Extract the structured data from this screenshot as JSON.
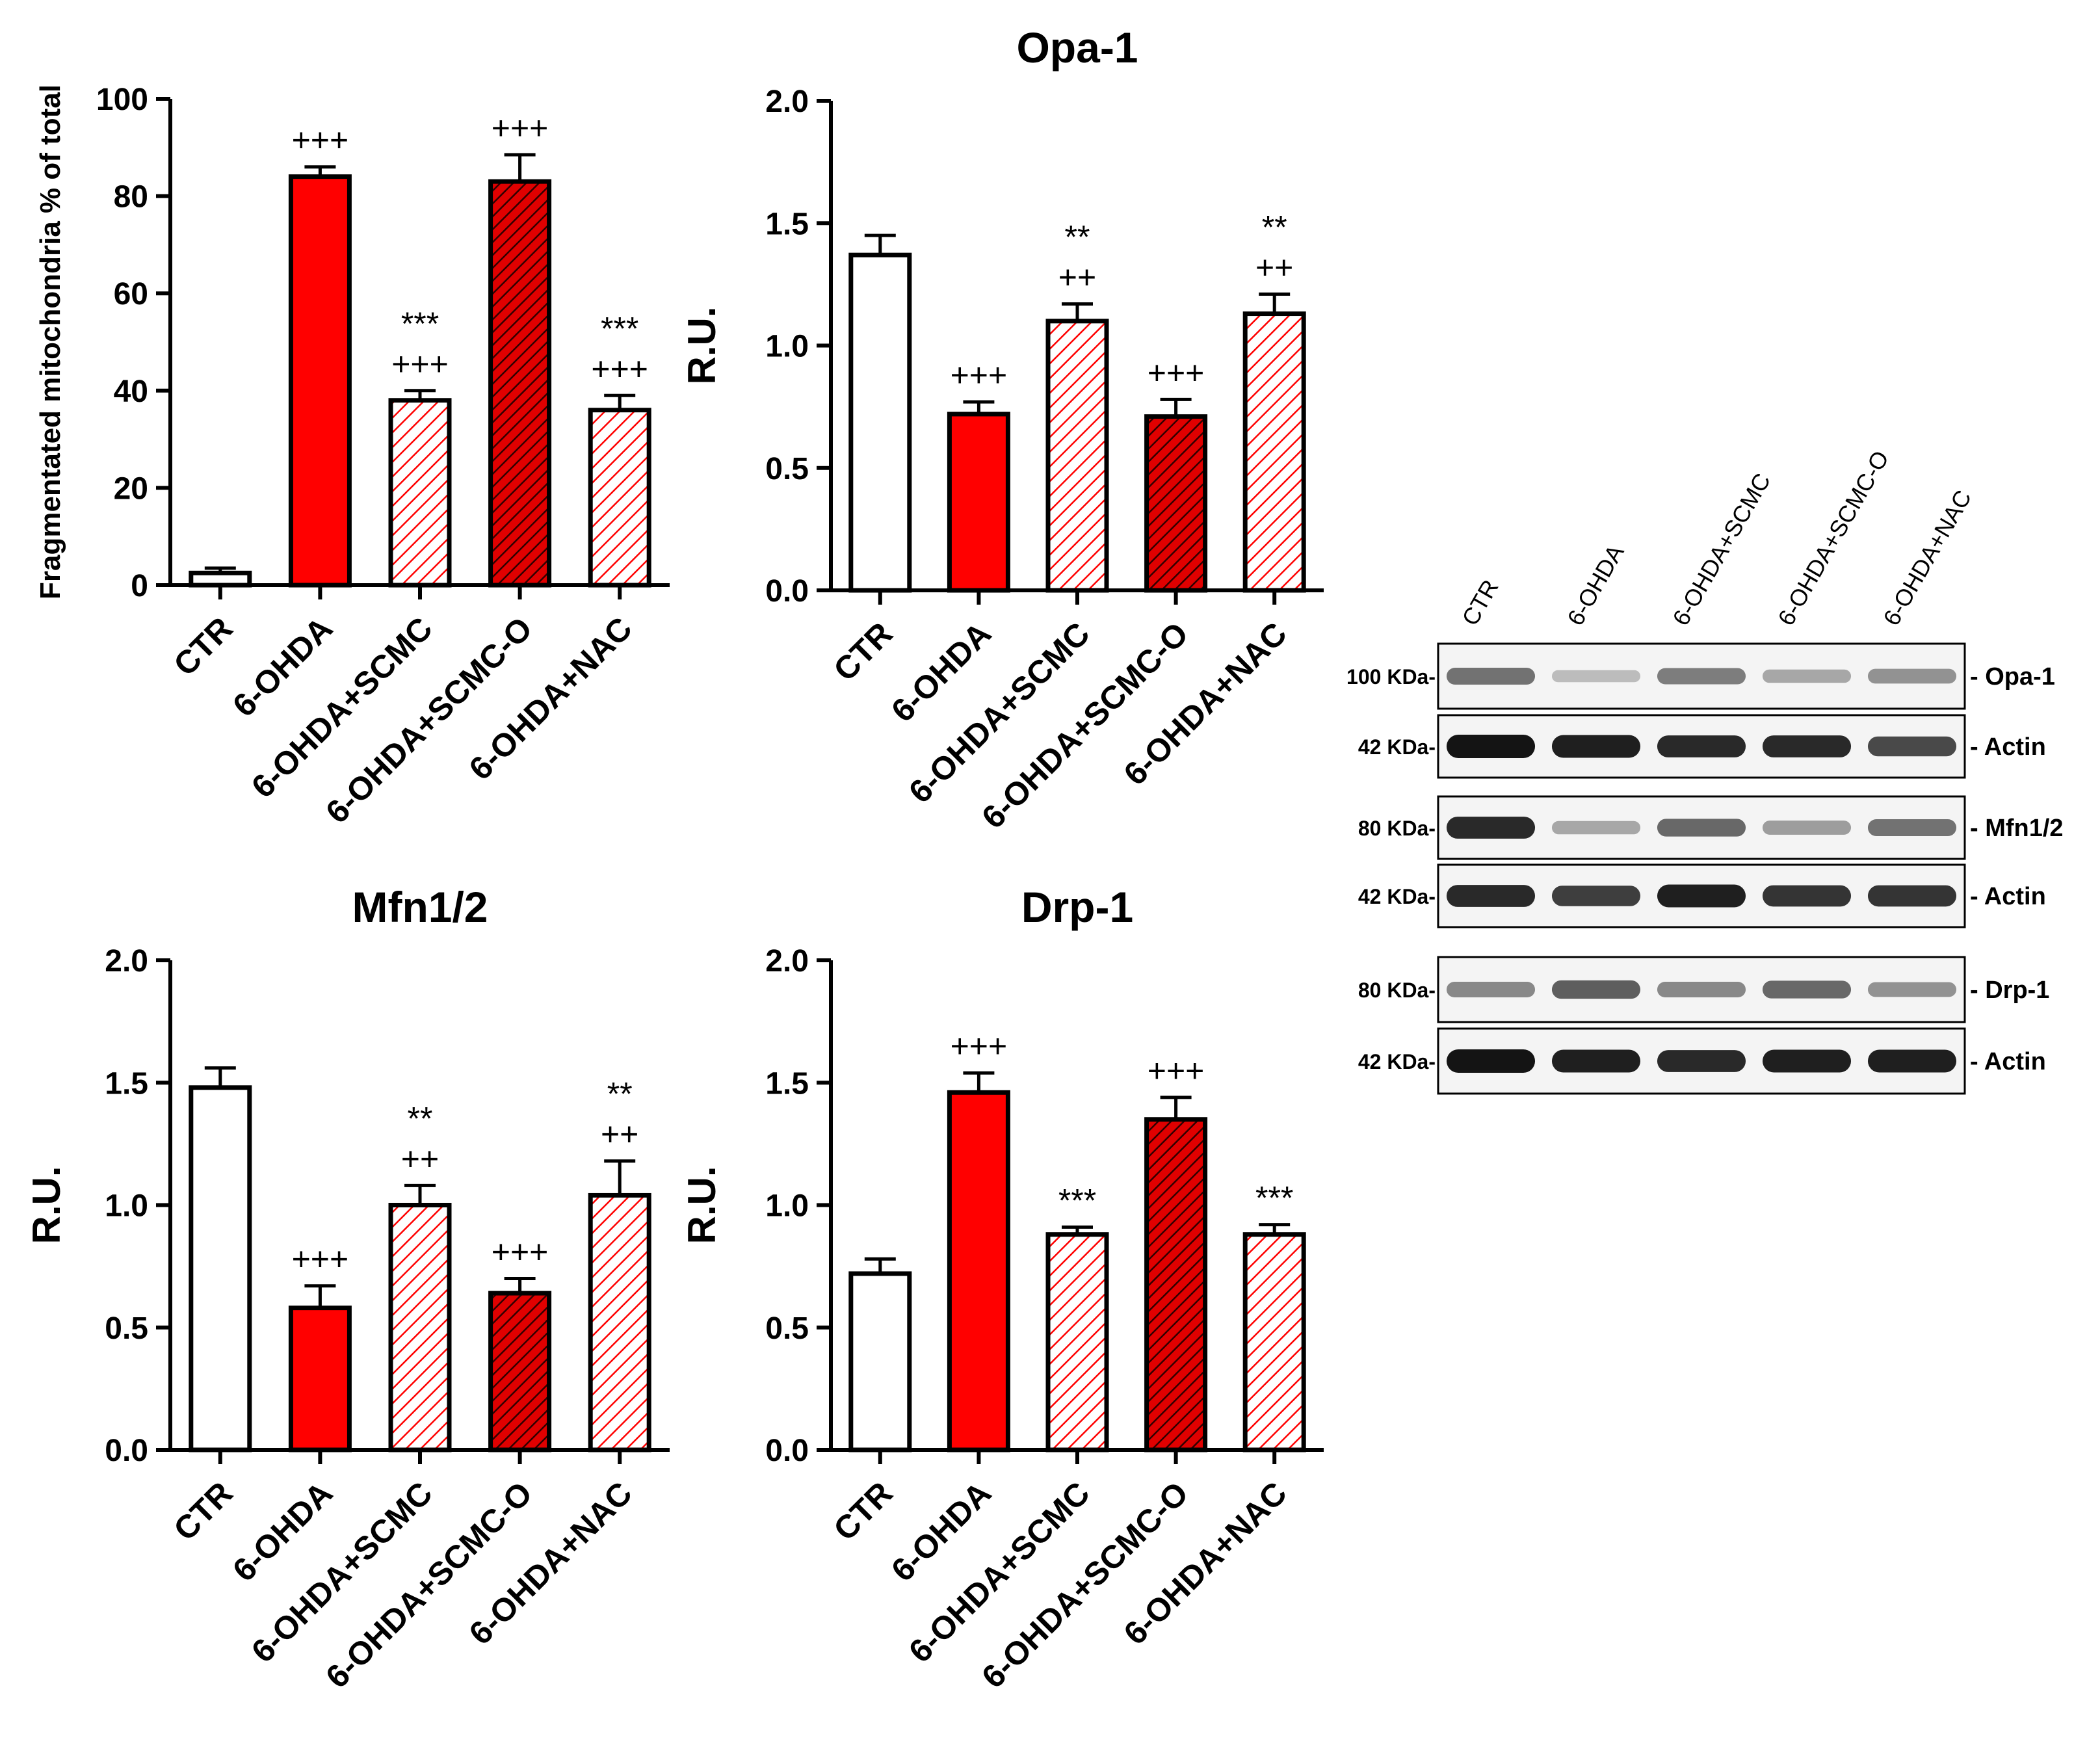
{
  "chart_data": [
    {
      "type": "bar",
      "title": "",
      "xlabel": "",
      "ylabel": "Fragmentated mitochondria % of total",
      "ylim": [
        0,
        100
      ],
      "yticks": [
        0,
        20,
        40,
        60,
        80,
        100
      ],
      "categories": [
        "CTR",
        "6-OHDA",
        "6-OHDA+SCMC",
        "6-OHDA+SCMC-O",
        "6-OHDA+NAC"
      ],
      "values": [
        2.5,
        84,
        38,
        83,
        36
      ],
      "errors": [
        1.0,
        2.0,
        2.0,
        5.5,
        3.0
      ],
      "annotations": [
        [],
        [
          "+++"
        ],
        [
          "***",
          "+++"
        ],
        [
          "+++"
        ],
        [
          "***",
          "+++"
        ]
      ]
    },
    {
      "type": "bar",
      "title": "Opa-1",
      "xlabel": "",
      "ylabel": "R.U.",
      "ylim": [
        0,
        2
      ],
      "yticks": [
        "0.0",
        "0.5",
        "1.0",
        "1.5",
        "2.0"
      ],
      "categories": [
        "CTR",
        "6-OHDA",
        "6-OHDA+SCMC",
        "6-OHDA+SCMC-O",
        "6-OHDA+NAC"
      ],
      "values": [
        1.37,
        0.72,
        1.1,
        0.71,
        1.13
      ],
      "errors": [
        0.08,
        0.05,
        0.07,
        0.07,
        0.08
      ],
      "annotations": [
        [],
        [
          "+++"
        ],
        [
          "**",
          "++"
        ],
        [
          "+++"
        ],
        [
          "**",
          "++"
        ]
      ]
    },
    {
      "type": "bar",
      "title": "Mfn1/2",
      "xlabel": "",
      "ylabel": "R.U.",
      "ylim": [
        0,
        2
      ],
      "yticks": [
        "0.0",
        "0.5",
        "1.0",
        "1.5",
        "2.0"
      ],
      "categories": [
        "CTR",
        "6-OHDA",
        "6-OHDA+SCMC",
        "6-OHDA+SCMC-O",
        "6-OHDA+NAC"
      ],
      "values": [
        1.48,
        0.58,
        1.0,
        0.64,
        1.04
      ],
      "errors": [
        0.08,
        0.09,
        0.08,
        0.06,
        0.14
      ],
      "annotations": [
        [],
        [
          "+++"
        ],
        [
          "**",
          "++"
        ],
        [
          "+++"
        ],
        [
          "**",
          "++"
        ]
      ]
    },
    {
      "type": "bar",
      "title": "Drp-1",
      "xlabel": "",
      "ylabel": "R.U.",
      "ylim": [
        0,
        2
      ],
      "yticks": [
        "0.0",
        "0.5",
        "1.0",
        "1.5",
        "2.0"
      ],
      "categories": [
        "CTR",
        "6-OHDA",
        "6-OHDA+SCMC",
        "6-OHDA+SCMC-O",
        "6-OHDA+NAC"
      ],
      "values": [
        0.72,
        1.46,
        0.88,
        1.35,
        0.88
      ],
      "errors": [
        0.06,
        0.08,
        0.03,
        0.09,
        0.04
      ],
      "annotations": [
        [],
        [
          "+++"
        ],
        [
          "***"
        ],
        [
          "+++"
        ],
        [
          "***"
        ]
      ]
    }
  ],
  "bar_styles": [
    {
      "fill": "#ffffff",
      "pattern": "none"
    },
    {
      "fill": "#ff0000",
      "pattern": "none"
    },
    {
      "fill": "#ffffff",
      "pattern": "hatch",
      "hatch_color": "#ff0000"
    },
    {
      "fill": "#ff0000",
      "pattern": "hatch",
      "hatch_color": "#000000"
    },
    {
      "fill": "#ffffff",
      "pattern": "hatch",
      "hatch_color": "#ff0000"
    }
  ],
  "colors": {
    "accent": "#ff0000",
    "axis": "#000000"
  },
  "western_blot": {
    "lanes": [
      "CTR",
      "6-OHDA",
      "6-OHDA+SCMC",
      "6-OHDA+SCMC-O",
      "6-OHDA+NAC"
    ],
    "blots": [
      {
        "marker": "100 KDa-",
        "protein": "- Opa-1",
        "intensities": [
          0.55,
          0.2,
          0.5,
          0.3,
          0.4
        ]
      },
      {
        "marker": "42 KDa-",
        "protein": "- Actin",
        "intensities": [
          1.0,
          0.95,
          0.9,
          0.9,
          0.75
        ]
      },
      {
        "marker": "80 KDa-",
        "protein": "- Mfn1/2",
        "intensities": [
          0.9,
          0.3,
          0.6,
          0.35,
          0.55
        ]
      },
      {
        "marker": "42 KDa-",
        "protein": "- Actin",
        "intensities": [
          0.9,
          0.8,
          0.95,
          0.85,
          0.85
        ]
      },
      {
        "marker": "80 KDa-",
        "protein": "- Drp-1",
        "intensities": [
          0.45,
          0.65,
          0.45,
          0.6,
          0.4
        ]
      },
      {
        "marker": "42 KDa-",
        "protein": "- Actin",
        "intensities": [
          1.0,
          0.95,
          0.9,
          0.95,
          0.95
        ]
      }
    ]
  }
}
